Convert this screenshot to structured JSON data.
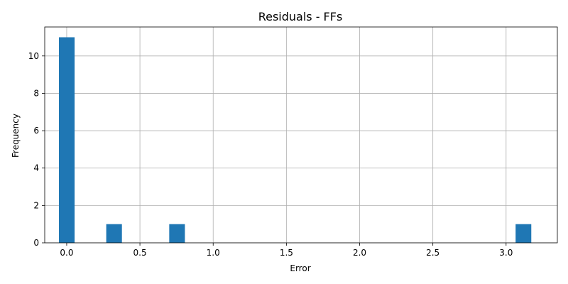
{
  "chart_data": {
    "type": "bar",
    "title": "Residuals - FFs",
    "xlabel": "Error",
    "ylabel": "Frequency",
    "xlim": [
      -0.15,
      3.35
    ],
    "ylim": [
      0,
      11.55
    ],
    "grid": true,
    "bar_color": "#1f77b4",
    "bin_width": 0.107,
    "bins": [
      {
        "x_start": -0.053,
        "x_end": 0.054,
        "count": 11
      },
      {
        "x_start": 0.27,
        "x_end": 0.377,
        "count": 1
      },
      {
        "x_start": 0.7,
        "x_end": 0.807,
        "count": 1
      },
      {
        "x_start": 3.065,
        "x_end": 3.172,
        "count": 1
      }
    ],
    "x_ticks": [
      0.0,
      0.5,
      1.0,
      1.5,
      2.0,
      2.5,
      3.0
    ],
    "x_tick_labels": [
      "0.0",
      "0.5",
      "1.0",
      "1.5",
      "2.0",
      "2.5",
      "3.0"
    ],
    "y_ticks": [
      0,
      2,
      4,
      6,
      8,
      10
    ],
    "y_tick_labels": [
      "0",
      "2",
      "4",
      "6",
      "8",
      "10"
    ]
  }
}
